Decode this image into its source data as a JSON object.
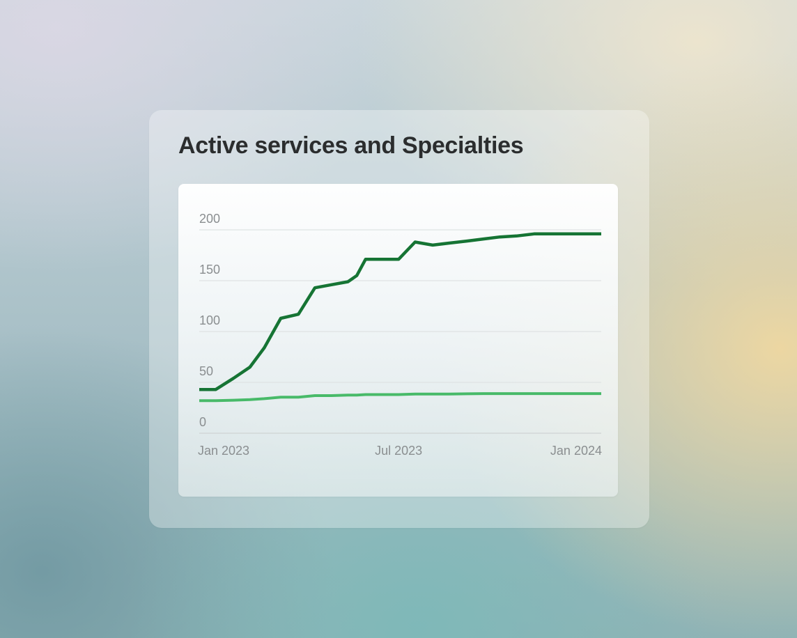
{
  "chart_data": {
    "type": "line",
    "title": "Active services and Specialties",
    "xlabel": "",
    "ylabel": "",
    "ylim": [
      0,
      200
    ],
    "yticks": [
      0,
      50,
      100,
      150,
      200
    ],
    "xticks": [
      "Jan 2023",
      "Jul 2023",
      "Jan 2024"
    ],
    "x": [
      "2023-01-01",
      "2023-01-16",
      "2023-02-01",
      "2023-02-16",
      "2023-03-01",
      "2023-03-16",
      "2023-04-01",
      "2023-04-16",
      "2023-05-01",
      "2023-05-16",
      "2023-05-24",
      "2023-06-01",
      "2023-06-16",
      "2023-07-01",
      "2023-07-16",
      "2023-08-01",
      "2023-08-16",
      "2023-09-01",
      "2023-09-16",
      "2023-10-01",
      "2023-10-16",
      "2023-11-01",
      "2023-11-16",
      "2023-12-01",
      "2023-12-16",
      "2024-01-01"
    ],
    "series": [
      {
        "color": "#167434",
        "values": [
          43,
          43,
          54,
          65,
          84,
          113,
          117,
          143,
          146,
          149,
          155,
          171,
          171,
          171,
          188,
          185,
          187,
          189,
          191,
          193,
          194,
          196,
          196,
          196,
          196,
          196
        ]
      },
      {
        "color": "#48ba69",
        "values": [
          32,
          32,
          32.5,
          33,
          34,
          35.5,
          35.5,
          37,
          37,
          37.5,
          37.5,
          38,
          38,
          38,
          38.5,
          38.5,
          38.5,
          38.8,
          39,
          39,
          39,
          39,
          39,
          39,
          39,
          39
        ]
      }
    ],
    "grid": true,
    "legend": "none"
  }
}
